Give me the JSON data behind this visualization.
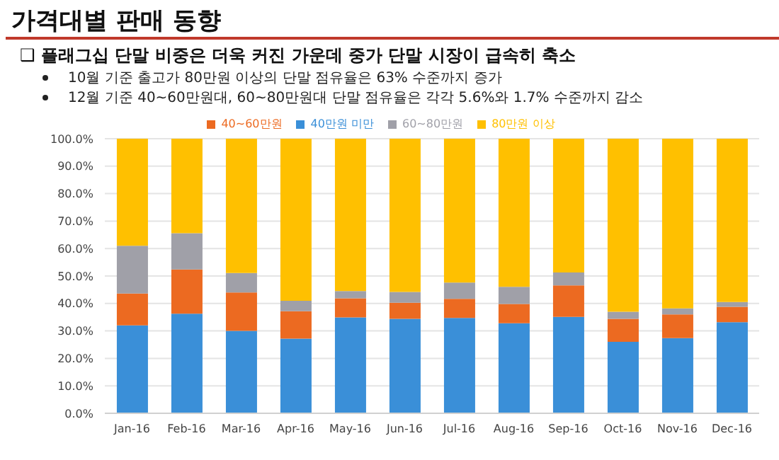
{
  "chart_data": {
    "type": "bar",
    "title": "가격대별 판매 동향",
    "subtitle": "❑ 플래그십 단말 비중은 더욱 커진 가운데 중가 단말 시장이 급속히 축소",
    "annotations": [
      "10월 기준 출고가 80만원 이상의 단말 점유율은 63% 수준까지 증가",
      "12월 기준 40~60만원대, 60~80만원대 단말 점유율은 각각 5.6%와 1.7% 수준까지 감소"
    ],
    "categories": [
      "Jan-16",
      "Feb-16",
      "Mar-16",
      "Apr-16",
      "May-16",
      "Jun-16",
      "Jul-16",
      "Aug-16",
      "Sep-16",
      "Oct-16",
      "Nov-16",
      "Dec-16"
    ],
    "stacked": true,
    "series": [
      {
        "name": "40만원 미만",
        "color": "#3a8fd8",
        "values": [
          32,
          36.3,
          30,
          27.2,
          34.9,
          34.4,
          34.7,
          32.8,
          35.1,
          26,
          27.4,
          33.2
        ]
      },
      {
        "name": "40~60만원",
        "color": "#ec6a21",
        "values": [
          11.6,
          16.1,
          14,
          10,
          7,
          5.9,
          7,
          7,
          11.5,
          8.4,
          8.6,
          5.6
        ]
      },
      {
        "name": "60~80만원",
        "color": "#a0a0a8",
        "values": [
          17.4,
          13.2,
          7.1,
          3.8,
          2.6,
          3.9,
          5.9,
          6.3,
          4.7,
          2.6,
          2.2,
          1.7
        ]
      },
      {
        "name": "80만원 이상",
        "color": "#ffc000",
        "values": [
          39,
          34.4,
          48.9,
          59,
          55.5,
          55.8,
          52.4,
          53.9,
          48.7,
          63,
          61.8,
          59.5
        ]
      }
    ],
    "ylim": [
      0,
      100
    ],
    "yticks": [
      {
        "value": 0,
        "label": "0.0%"
      },
      {
        "value": 10,
        "label": "10.0%"
      },
      {
        "value": 20,
        "label": "20.0%"
      },
      {
        "value": 30,
        "label": "30.0%"
      },
      {
        "value": 40,
        "label": "40.0%"
      },
      {
        "value": 50,
        "label": "50.0%"
      },
      {
        "value": 60,
        "label": "60.0%"
      },
      {
        "value": 70,
        "label": "70.0%"
      },
      {
        "value": 80,
        "label": "80.0%"
      },
      {
        "value": 90,
        "label": "90.0%"
      },
      {
        "value": 100,
        "label": "100.0%"
      }
    ],
    "grid": "y",
    "legend": "top"
  }
}
